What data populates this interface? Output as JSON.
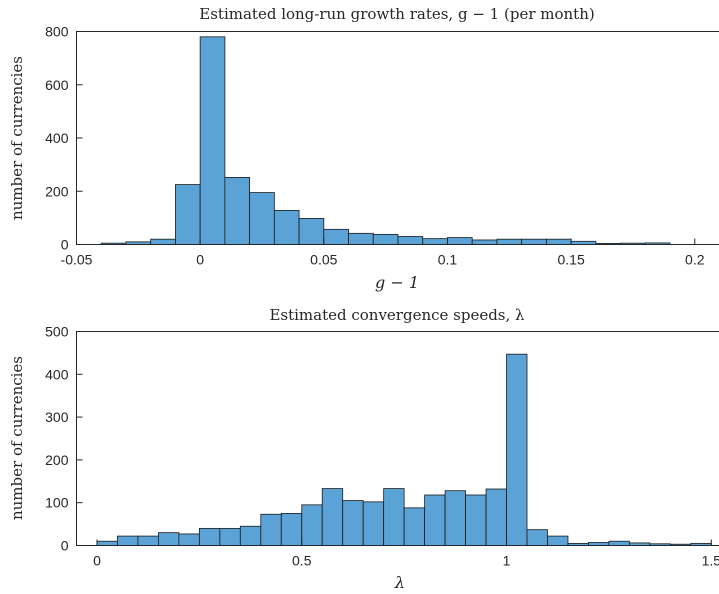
{
  "chart_data": [
    {
      "type": "bar",
      "title": "Estimated long-run growth rates, g − 1 (per month)",
      "xlabel": "g − 1",
      "ylabel": "number of currencies",
      "xlim": [
        -0.05,
        0.21
      ],
      "ylim": [
        0,
        800
      ],
      "xticks": [
        -0.05,
        0,
        0.05,
        0.1,
        0.15,
        0.2
      ],
      "xtick_labels": [
        "-0.05",
        "0",
        "0.05",
        "0.1",
        "0.15",
        "0.2"
      ],
      "yticks": [
        0,
        200,
        400,
        600,
        800
      ],
      "ytick_labels": [
        "0",
        "200",
        "400",
        "600",
        "800"
      ],
      "bin_width": 0.01,
      "bin_starts": [
        -0.04,
        -0.03,
        -0.02,
        -0.01,
        0,
        0.01,
        0.02,
        0.03,
        0.04,
        0.05,
        0.06,
        0.07,
        0.08,
        0.09,
        0.1,
        0.11,
        0.12,
        0.13,
        0.14,
        0.15,
        0.16,
        0.17,
        0.18
      ],
      "values": [
        5,
        10,
        20,
        225,
        780,
        252,
        195,
        128,
        98,
        57,
        42,
        38,
        30,
        22,
        26,
        17,
        20,
        20,
        20,
        12,
        4,
        5,
        6
      ],
      "grid": false,
      "box": true
    },
    {
      "type": "bar",
      "title": "Estimated convergence speeds, λ",
      "xlabel": "λ",
      "ylabel": "number of currencies",
      "xlim": [
        -0.05,
        1.52
      ],
      "ylim": [
        0,
        500
      ],
      "xticks": [
        0,
        0.5,
        1,
        1.5
      ],
      "xtick_labels": [
        "0",
        "0.5",
        "1",
        "1.5"
      ],
      "yticks": [
        0,
        100,
        200,
        300,
        400,
        500
      ],
      "ytick_labels": [
        "0",
        "100",
        "200",
        "300",
        "400",
        "500"
      ],
      "bin_width": 0.05,
      "bin_starts": [
        0,
        0.05,
        0.1,
        0.15,
        0.2,
        0.25,
        0.3,
        0.35,
        0.4,
        0.45,
        0.5,
        0.55,
        0.6,
        0.65,
        0.7,
        0.75,
        0.8,
        0.85,
        0.9,
        0.95,
        1.0,
        1.05,
        1.1,
        1.15,
        1.2,
        1.25,
        1.3,
        1.35,
        1.4,
        1.45
      ],
      "values": [
        10,
        22,
        22,
        30,
        27,
        40,
        40,
        45,
        73,
        75,
        95,
        133,
        105,
        102,
        133,
        88,
        118,
        128,
        118,
        132,
        447,
        37,
        22,
        5,
        7,
        10,
        6,
        4,
        3,
        5
      ],
      "grid": false,
      "box": true
    }
  ]
}
